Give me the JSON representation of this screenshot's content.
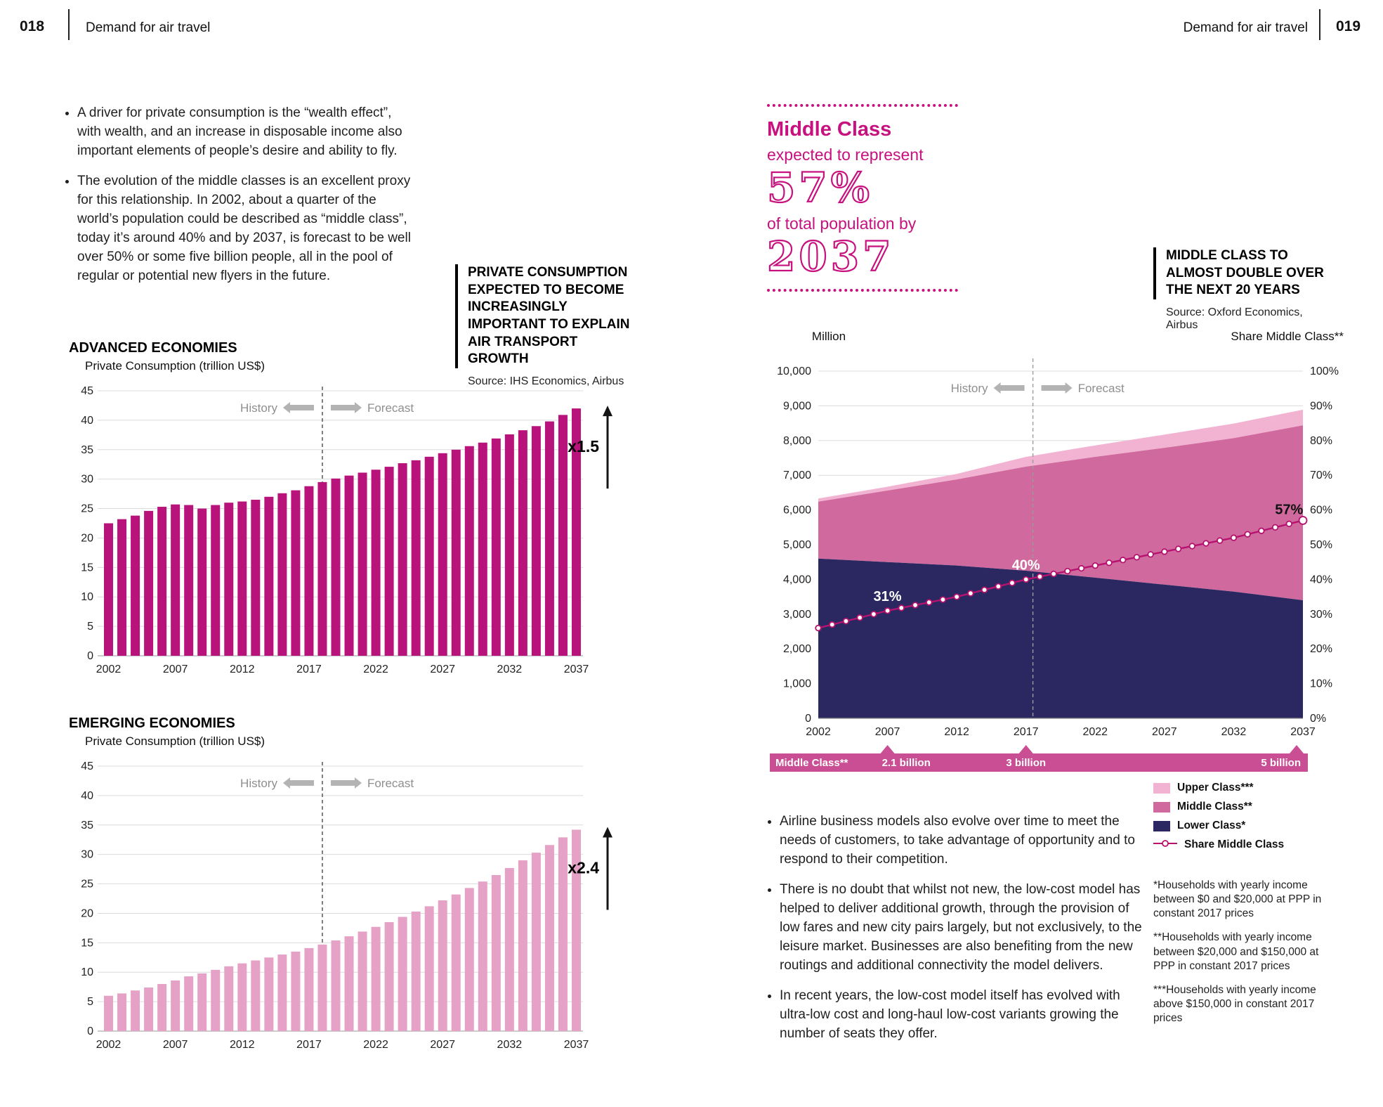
{
  "header": {
    "left_page_number": "018",
    "left_title": "Demand for air travel",
    "right_title": "Demand for air travel",
    "right_page_number": "019"
  },
  "left_page": {
    "bullets": [
      "A driver for private consumption is the “wealth effect”, with wealth, and an increase in disposable income also important elements of people’s desire and ability to fly.",
      "The evolution of the middle classes is an excellent proxy for this relationship. In 2002, about a quarter of the world’s population could be described as “middle class”, today it’s around 40% and by 2037, is forecast to be well over 50% or some five billion people, all in the pool of regular or potential new flyers in the future."
    ],
    "callout": {
      "text": "PRIVATE CONSUMPTION EXPECTED TO BECOME INCREASINGLY IMPORTANT TO EXPLAIN AIR TRANSPORT GROWTH",
      "source": "Source: IHS Economics, Airbus"
    },
    "chart1_title": "ADVANCED ECONOMIES",
    "chart2_title": "EMERGING ECONOMIES"
  },
  "right_page": {
    "stat_callout": {
      "title": "Middle Class",
      "line1": "expected to represent",
      "big1": "57%",
      "line2": "of total population by",
      "big2": "2037"
    },
    "headline": {
      "text": "MIDDLE CLASS TO ALMOST DOUBLE OVER THE NEXT 20 YEARS",
      "source": "Source: Oxford Economics, Airbus"
    },
    "bullets": [
      "Airline business models also evolve over time to meet the needs of customers, to take advantage of opportunity and to respond to their competition.",
      "There is no doubt that whilst not new, the low-cost model has helped to deliver additional growth, through the provision of low fares and new city pairs largely, but not exclusively, to the leisure market. Businesses are also benefiting from the new routings and additional connectivity the model delivers.",
      "In recent years, the low-cost model itself has evolved with ultra-low cost and long-haul low-cost variants growing the number of seats they offer."
    ],
    "legend": [
      {
        "label": "Upper Class***",
        "color": "#f2b3d2",
        "type": "swatch"
      },
      {
        "label": "Middle Class**",
        "color": "#d06a9e",
        "type": "swatch"
      },
      {
        "label": "Lower Class*",
        "color": "#2b2861",
        "type": "swatch"
      },
      {
        "label": "Share Middle Class",
        "color": "#b5136f",
        "type": "line"
      }
    ],
    "footnotes": [
      "*Households with yearly income between $0 and $20,000 at PPP in constant 2017 prices",
      "**Households with yearly income between $20,000 and $150,000 at PPP in constant 2017 prices",
      "***Households with yearly income above $150,000 in constant 2017 prices"
    ]
  },
  "chart_data": [
    {
      "type": "bar",
      "title": "ADVANCED ECONOMIES",
      "ylabel": "Private Consumption (trillion US$)",
      "categories": [
        2002,
        2003,
        2004,
        2005,
        2006,
        2007,
        2008,
        2009,
        2010,
        2011,
        2012,
        2013,
        2014,
        2015,
        2016,
        2017,
        2018,
        2019,
        2020,
        2021,
        2022,
        2023,
        2024,
        2025,
        2026,
        2027,
        2028,
        2029,
        2030,
        2031,
        2032,
        2033,
        2034,
        2035,
        2036,
        2037
      ],
      "values": [
        22.5,
        23.2,
        23.8,
        24.6,
        25.3,
        25.7,
        25.6,
        25.0,
        25.6,
        26.0,
        26.2,
        26.5,
        27.0,
        27.6,
        28.1,
        28.8,
        29.5,
        30.1,
        30.6,
        31.1,
        31.6,
        32.1,
        32.7,
        33.2,
        33.8,
        34.4,
        35.0,
        35.6,
        36.2,
        36.9,
        37.6,
        38.3,
        39.0,
        39.8,
        40.9,
        42.0
      ],
      "ylim": [
        0,
        45
      ],
      "ystep": 5,
      "xticks": [
        2002,
        2007,
        2012,
        2017,
        2022,
        2027,
        2032,
        2037
      ],
      "divider": 2018.5,
      "history_label": "History",
      "forecast_label": "Forecast",
      "multiplier_label": "x1.5",
      "bar_color": "#b8137a"
    },
    {
      "type": "bar",
      "title": "EMERGING ECONOMIES",
      "ylabel": "Private Consumption (trillion US$)",
      "categories": [
        2002,
        2003,
        2004,
        2005,
        2006,
        2007,
        2008,
        2009,
        2010,
        2011,
        2012,
        2013,
        2014,
        2015,
        2016,
        2017,
        2018,
        2019,
        2020,
        2021,
        2022,
        2023,
        2024,
        2025,
        2026,
        2027,
        2028,
        2029,
        2030,
        2031,
        2032,
        2033,
        2034,
        2035,
        2036,
        2037
      ],
      "values": [
        6.0,
        6.4,
        6.9,
        7.4,
        8.0,
        8.6,
        9.3,
        9.8,
        10.4,
        11.0,
        11.5,
        12.0,
        12.5,
        13.0,
        13.5,
        14.1,
        14.7,
        15.4,
        16.1,
        16.9,
        17.7,
        18.5,
        19.4,
        20.3,
        21.2,
        22.2,
        23.2,
        24.3,
        25.4,
        26.5,
        27.7,
        29.0,
        30.3,
        31.6,
        32.9,
        34.2
      ],
      "ylim": [
        0,
        45
      ],
      "ystep": 5,
      "xticks": [
        2002,
        2007,
        2012,
        2017,
        2022,
        2027,
        2032,
        2037
      ],
      "divider": 2018.5,
      "history_label": "History",
      "forecast_label": "Forecast",
      "multiplier_label": "x2.4",
      "bar_color": "#e5a2c6"
    },
    {
      "type": "area",
      "title": "MIDDLE CLASS TO ALMOST DOUBLE OVER THE NEXT 20 YEARS",
      "left_axis_label": "Million",
      "right_axis_label": "Share Middle Class**",
      "x": [
        2002,
        2007,
        2012,
        2017,
        2022,
        2027,
        2032,
        2037
      ],
      "series": [
        {
          "name": "Lower Class*",
          "values": [
            4600,
            4500,
            4400,
            4250,
            4050,
            3850,
            3650,
            3400
          ],
          "color": "#2b2861"
        },
        {
          "name": "Middle Class**",
          "values": [
            1640,
            2060,
            2480,
            3000,
            3480,
            3940,
            4420,
            5040
          ],
          "color": "#d06a9e"
        },
        {
          "name": "Upper Class***",
          "values": [
            90,
            110,
            160,
            280,
            330,
            380,
            420,
            450
          ],
          "color": "#f2b3d2"
        }
      ],
      "line_series": {
        "name": "Share Middle Class",
        "values_pct": [
          26,
          31,
          35,
          40,
          44,
          48,
          52,
          57
        ],
        "color": "#b5136f"
      },
      "annotations": [
        {
          "x": 2007,
          "text": "31%",
          "color": "#ffffff"
        },
        {
          "x": 2017,
          "text": "40%",
          "color": "#ffffff"
        },
        {
          "x": 2036,
          "text": "57%",
          "color": "#111111"
        }
      ],
      "left_ylim": [
        0,
        10000
      ],
      "right_ylim": [
        0,
        100
      ],
      "xticks": [
        2002,
        2007,
        2012,
        2017,
        2022,
        2027,
        2032,
        2037
      ],
      "divider": 2017.5,
      "history_label": "History",
      "forecast_label": "Forecast",
      "band": {
        "label": "Middle Class**",
        "color": "#c94e94",
        "markers": [
          {
            "x": 2007,
            "label": "2.1 billion"
          },
          {
            "x": 2017,
            "label": "3 billion"
          },
          {
            "x": 2037,
            "label": "5 billion"
          }
        ]
      }
    }
  ]
}
